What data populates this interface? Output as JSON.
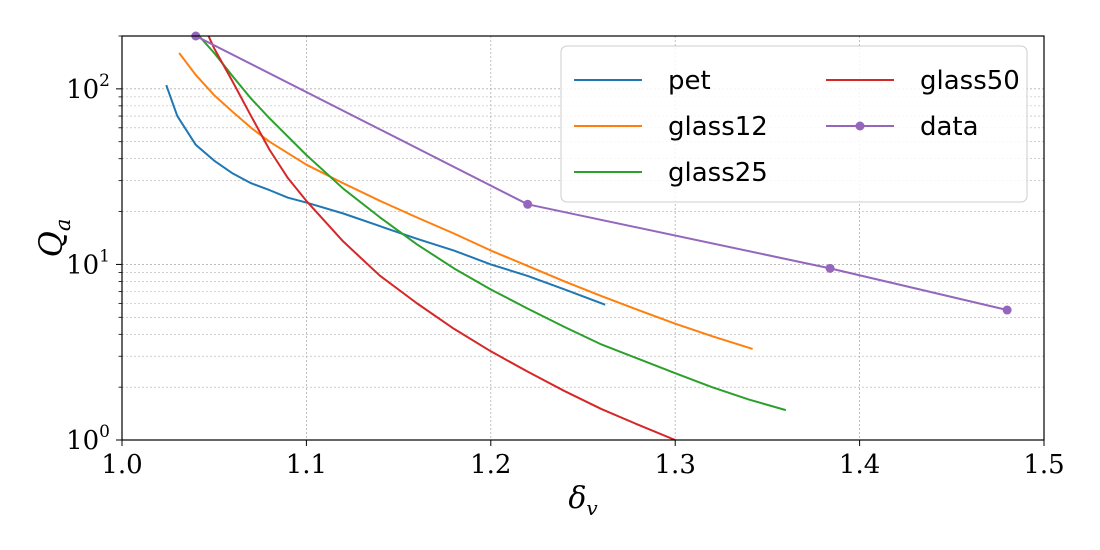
{
  "chart_data": {
    "type": "line",
    "xlabel": "δ",
    "xlabel_sub": "v",
    "ylabel": "Q",
    "ylabel_sub": "a",
    "xlim": [
      1.0,
      1.5
    ],
    "ylim": [
      1,
      200
    ],
    "yscale": "log",
    "grid": true,
    "legend_position": "top-right",
    "x_ticks": [
      "1.0",
      "1.1",
      "1.2",
      "1.3",
      "1.4",
      "1.5"
    ],
    "x_tick_values": [
      1.0,
      1.1,
      1.2,
      1.3,
      1.4,
      1.5
    ],
    "y_ticks": [
      {
        "value": 1,
        "base": "10",
        "exp": "0"
      },
      {
        "value": 10,
        "base": "10",
        "exp": "1"
      },
      {
        "value": 100,
        "base": "10",
        "exp": "2"
      }
    ],
    "series": [
      {
        "name": "pet",
        "color": "#1f77b4",
        "marker": false,
        "x": [
          1.024,
          1.03,
          1.04,
          1.05,
          1.06,
          1.07,
          1.08,
          1.09,
          1.1,
          1.12,
          1.14,
          1.16,
          1.18,
          1.2,
          1.22,
          1.24,
          1.262
        ],
        "y": [
          105,
          70,
          48,
          39,
          33,
          29,
          26.5,
          24,
          22.5,
          19.5,
          16.5,
          14,
          12,
          10,
          8.6,
          7.2,
          5.9
        ]
      },
      {
        "name": "glass12",
        "color": "#ff7f0e",
        "marker": false,
        "x": [
          1.031,
          1.04,
          1.05,
          1.06,
          1.07,
          1.08,
          1.1,
          1.12,
          1.14,
          1.16,
          1.18,
          1.2,
          1.22,
          1.24,
          1.26,
          1.28,
          1.3,
          1.32,
          1.342
        ],
        "y": [
          160,
          120,
          92,
          74,
          60,
          50,
          37,
          29,
          23,
          18.5,
          15,
          12,
          9.8,
          8,
          6.6,
          5.5,
          4.6,
          3.9,
          3.3
        ]
      },
      {
        "name": "glass25",
        "color": "#2ca02c",
        "marker": false,
        "x": [
          1.04,
          1.05,
          1.06,
          1.07,
          1.08,
          1.1,
          1.12,
          1.14,
          1.16,
          1.18,
          1.2,
          1.22,
          1.24,
          1.26,
          1.28,
          1.3,
          1.32,
          1.34,
          1.36
        ],
        "y": [
          210,
          160,
          118,
          88,
          68,
          42,
          27,
          18.5,
          13,
          9.5,
          7.2,
          5.6,
          4.4,
          3.5,
          2.9,
          2.4,
          2,
          1.7,
          1.48
        ]
      },
      {
        "name": "glass50",
        "color": "#d62728",
        "marker": false,
        "x": [
          1.046,
          1.05,
          1.06,
          1.07,
          1.08,
          1.09,
          1.1,
          1.12,
          1.14,
          1.16,
          1.18,
          1.2,
          1.22,
          1.24,
          1.26,
          1.28,
          1.3
        ],
        "y": [
          210,
          170,
          110,
          70,
          45,
          31,
          23,
          13.5,
          8.6,
          6,
          4.3,
          3.2,
          2.45,
          1.9,
          1.5,
          1.22,
          1.0
        ]
      },
      {
        "name": "data",
        "color": "#9467bd",
        "marker": true,
        "x": [
          1.04,
          1.22,
          1.384,
          1.48
        ],
        "y": [
          200,
          22,
          9.5,
          5.5
        ]
      }
    ]
  }
}
